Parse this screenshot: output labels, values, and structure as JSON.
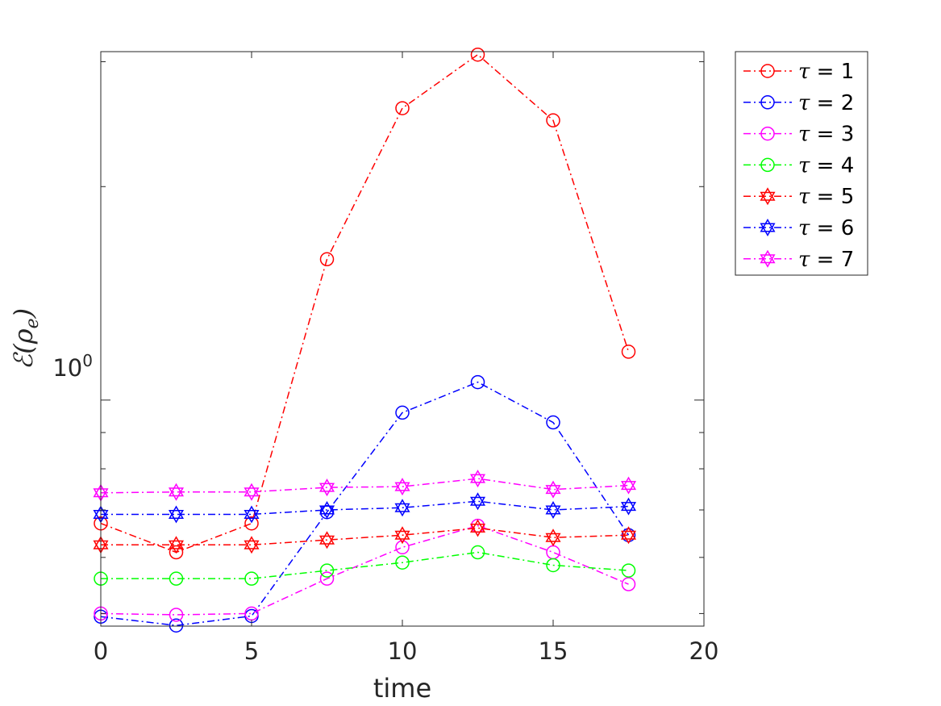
{
  "chart_data": {
    "type": "line",
    "xlabel": "time",
    "ylabel": "ℰ(ρₑ)",
    "ylabel_main": "ℰ(ρ",
    "ylabel_sub": "e",
    "ylabel_close": ")",
    "yscale": "log",
    "xlim": [
      0,
      20
    ],
    "ylim": [
      0.48,
      3.1
    ],
    "x_ticks": [
      0,
      5,
      10,
      15,
      20
    ],
    "x_tick_labels": [
      "0",
      "5",
      "10",
      "15",
      "20"
    ],
    "y_major_tick_label": {
      "base": "10",
      "exp": "0"
    },
    "grid": false,
    "legend_position": "outside-right",
    "x": [
      0,
      2.5,
      5,
      7.5,
      10,
      12.5,
      15,
      17.5
    ],
    "series": [
      {
        "name": "τ = 1",
        "label_left": "τ",
        "label_right": " = 1",
        "color": "#ff0000",
        "marker": "circle",
        "values": [
          0.67,
          0.61,
          0.67,
          1.58,
          2.58,
          3.07,
          2.48,
          1.17
        ]
      },
      {
        "name": "τ = 2",
        "label_left": "τ",
        "label_right": " = 2",
        "color": "#0000ff",
        "marker": "circle",
        "values": [
          0.495,
          0.481,
          0.496,
          0.695,
          0.96,
          1.06,
          0.93,
          0.645
        ]
      },
      {
        "name": "τ = 3",
        "label_left": "τ",
        "label_right": " = 3",
        "color": "#ff00ff",
        "marker": "circle",
        "values": [
          0.5,
          0.498,
          0.5,
          0.56,
          0.62,
          0.665,
          0.61,
          0.55
        ]
      },
      {
        "name": "τ = 4",
        "label_left": "τ",
        "label_right": " = 4",
        "color": "#00ff00",
        "marker": "circle",
        "values": [
          0.56,
          0.56,
          0.56,
          0.575,
          0.59,
          0.61,
          0.585,
          0.575
        ]
      },
      {
        "name": "τ = 5",
        "label_left": "τ",
        "label_right": " = 5",
        "color": "#ff0000",
        "marker": "star",
        "values": [
          0.625,
          0.625,
          0.625,
          0.635,
          0.645,
          0.66,
          0.64,
          0.645
        ]
      },
      {
        "name": "τ = 6",
        "label_left": "τ",
        "label_right": " = 6",
        "color": "#0000ff",
        "marker": "star",
        "values": [
          0.69,
          0.69,
          0.69,
          0.7,
          0.705,
          0.72,
          0.7,
          0.708
        ]
      },
      {
        "name": "τ = 7",
        "label_left": "τ",
        "label_right": " = 7",
        "color": "#ff00ff",
        "marker": "star",
        "values": [
          0.74,
          0.742,
          0.742,
          0.753,
          0.755,
          0.775,
          0.748,
          0.758
        ]
      }
    ]
  }
}
